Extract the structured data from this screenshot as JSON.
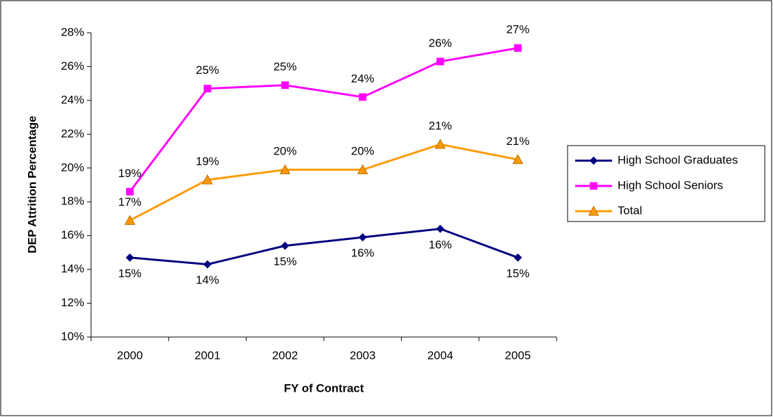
{
  "chart_data": {
    "type": "line",
    "xlabel": "FY of Contract",
    "ylabel": "DEP Attrition Percentage",
    "categories": [
      "2000",
      "2001",
      "2002",
      "2003",
      "2004",
      "2005"
    ],
    "series": [
      {
        "name": "High School Graduates",
        "color": "#000080",
        "marker": "diamond",
        "values": [
          14.7,
          14.3,
          15.4,
          15.9,
          16.4,
          14.7
        ],
        "value_labels": [
          "15%",
          "14%",
          "15%",
          "16%",
          "16%",
          "15%"
        ]
      },
      {
        "name": "High School Seniors",
        "color": "#ff00ff",
        "marker": "square",
        "values": [
          18.6,
          24.7,
          24.9,
          24.2,
          26.3,
          27.1
        ],
        "value_labels": [
          "19%",
          "25%",
          "25%",
          "24%",
          "26%",
          "27%"
        ]
      },
      {
        "name": "Total",
        "color": "#ff9900",
        "marker": "triangle",
        "values": [
          16.9,
          19.3,
          19.9,
          19.9,
          21.4,
          20.5
        ],
        "value_labels": [
          "17%",
          "19%",
          "20%",
          "20%",
          "21%",
          "21%"
        ]
      }
    ],
    "ylim": [
      10,
      28
    ],
    "yticks": [
      {
        "value": 10,
        "label": "10%"
      },
      {
        "value": 12,
        "label": "12%"
      },
      {
        "value": 14,
        "label": "14%"
      },
      {
        "value": 16,
        "label": "16%"
      },
      {
        "value": 18,
        "label": "18%"
      },
      {
        "value": 20,
        "label": "20%"
      },
      {
        "value": 22,
        "label": "22%"
      },
      {
        "value": 24,
        "label": "24%"
      },
      {
        "value": 26,
        "label": "26%"
      },
      {
        "value": 28,
        "label": "28%"
      }
    ],
    "grid": false,
    "legend": "right"
  }
}
